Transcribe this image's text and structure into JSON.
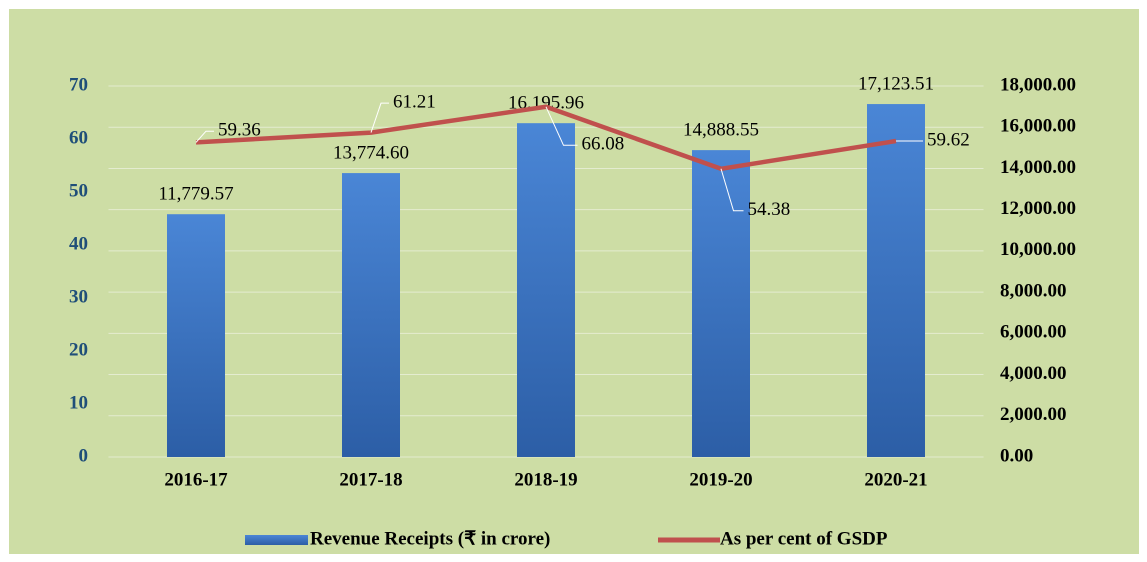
{
  "chart_data": {
    "type": "bar",
    "categories": [
      "2016-17",
      "2017-18",
      "2018-19",
      "2019-20",
      "2020-21"
    ],
    "series": [
      {
        "name": "Revenue Receipts (₹ in crore)",
        "type": "bar",
        "axis": "y2",
        "color": "#3a75c4",
        "values": [
          11779.57,
          13774.6,
          16195.96,
          14888.55,
          17123.51
        ],
        "value_labels": [
          "11,779.57",
          "13,774.60",
          "16,195.96",
          "14,888.55",
          "17,123.51"
        ]
      },
      {
        "name": "As per cent of GSDP",
        "type": "line",
        "axis": "y",
        "color": "#c0504d",
        "values": [
          59.36,
          61.21,
          66.08,
          54.38,
          59.62
        ]
      }
    ],
    "ylim": [
      0,
      70
    ],
    "yticks": [
      0,
      10,
      20,
      30,
      40,
      50,
      60,
      70
    ],
    "y2lim": [
      0,
      18000
    ],
    "y2ticks": [
      {
        "value": 0,
        "label": "0.00"
      },
      {
        "value": 2000,
        "label": "2,000.00"
      },
      {
        "value": 4000,
        "label": "4,000.00"
      },
      {
        "value": 6000,
        "label": "6,000.00"
      },
      {
        "value": 8000,
        "label": "8,000.00"
      },
      {
        "value": 10000,
        "label": "10,000.00"
      },
      {
        "value": 12000,
        "label": "12,000.00"
      },
      {
        "value": 14000,
        "label": "14,000.00"
      },
      {
        "value": 16000,
        "label": "16,000.00"
      },
      {
        "value": 18000,
        "label": "18,000.00"
      }
    ],
    "grid": true,
    "legend": "bottom"
  }
}
